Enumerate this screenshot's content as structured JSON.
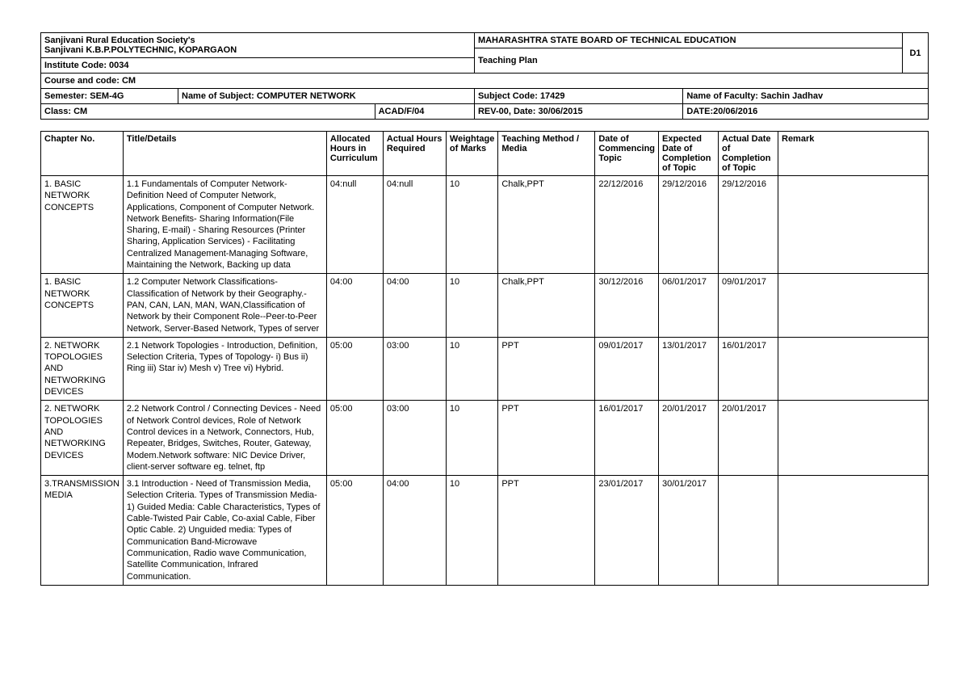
{
  "header": {
    "society": "Sanjivani Rural Education Society's",
    "institute": "Sanjivani K.B.P.POLYTECHNIC, KOPARGAON",
    "board": "MAHARASHTRA STATE BOARD OF TECHNICAL EDUCATION",
    "doc_code": "D1",
    "institute_code_label": "Institute Code: 0034",
    "plan_title": "Teaching Plan",
    "course_label": "Course and code: CM",
    "semester_label": "Semester: SEM-4G",
    "subject_name_label": "Name of Subject: COMPUTER NETWORK",
    "subject_code_label": "Subject Code: 17429",
    "faculty_label": "Name of Faculty: Sachin Jadhav",
    "class_label": "Class: CM",
    "form_code": "ACAD/F/04",
    "rev_label": "REV-00, Date: 30/06/2015",
    "date_label": "DATE:20/06/2016"
  },
  "columns": {
    "chapter": "Chapter No.",
    "title": "Title/Details",
    "allocated": "Allocated Hours in Curriculum",
    "actual": "Actual Hours Required",
    "weightage": "Weightage of Marks",
    "method": "Teaching Method / Media",
    "datecomm": "Date of Commencing Topic",
    "expected": "Expected Date of Completion of Topic",
    "actdate": "Actual Date of Completion of Topic",
    "remark": "Remark"
  },
  "rows": [
    {
      "chapter": "1. BASIC NETWORK CONCEPTS",
      "title": "1.1 Fundamentals of Computer Network-Definition Need of Computer Network, Applications, Component of Computer Network. Network Benefits- Sharing Information(File Sharing, E-mail) - Sharing Resources (Printer Sharing, Application Services) - Facilitating Centralized Management-Managing Software, Maintaining the Network, Backing up data",
      "allocated": "04:null",
      "actual": "04:null",
      "weightage": "10",
      "method": "Chalk,PPT",
      "datecomm": "22/12/2016",
      "expected": "29/12/2016",
      "actdate": "29/12/2016",
      "remark": ""
    },
    {
      "chapter": "1. BASIC NETWORK CONCEPTS",
      "title": "1.2 Computer Network Classifications- Classification of Network by their Geography.-PAN, CAN, LAN, MAN, WAN,Classification of Network by their Component Role--Peer-to-Peer Network, Server-Based Network, Types of server",
      "allocated": "04:00",
      "actual": "04:00",
      "weightage": "10",
      "method": "Chalk,PPT",
      "datecomm": "30/12/2016",
      "expected": "06/01/2017",
      "actdate": "09/01/2017",
      "remark": ""
    },
    {
      "chapter": "2. NETWORK TOPOLOGIES AND NETWORKING DEVICES",
      "title": "2.1 Network Topologies - Introduction, Definition, Selection Criteria, Types of Topology- i) Bus ii) Ring iii) Star iv) Mesh v) Tree vi) Hybrid.",
      "allocated": "05:00",
      "actual": "03:00",
      "weightage": "10",
      "method": "PPT",
      "datecomm": "09/01/2017",
      "expected": "13/01/2017",
      "actdate": "16/01/2017",
      "remark": ""
    },
    {
      "chapter": "2. NETWORK TOPOLOGIES AND NETWORKING DEVICES",
      "title": "2.2 Network Control / Connecting Devices - Need of Network Control devices, Role of Network Control devices in a Network, Connectors, Hub, Repeater, Bridges, Switches, Router, Gateway, Modem.Network software: NIC Device Driver, client-server software eg. telnet, ftp",
      "allocated": "05:00",
      "actual": "03:00",
      "weightage": "10",
      "method": "PPT",
      "datecomm": "16/01/2017",
      "expected": "20/01/2017",
      "actdate": "20/01/2017",
      "remark": ""
    },
    {
      "chapter": "3.TRANSMISSION MEDIA",
      "title": "3.1 Introduction - Need of Transmission Media, Selection Criteria. Types of Transmission Media- 1) Guided Media: Cable Characteristics, Types of Cable-Twisted Pair Cable, Co-axial Cable, Fiber Optic Cable. 2) Unguided media: Types of Communication Band-Microwave Communication, Radio wave Communication, Satellite Communication, Infrared Communication.",
      "allocated": "05:00",
      "actual": "04:00",
      "weightage": "10",
      "method": "PPT",
      "datecomm": "23/01/2017",
      "expected": "30/01/2017",
      "actdate": "",
      "remark": ""
    }
  ]
}
